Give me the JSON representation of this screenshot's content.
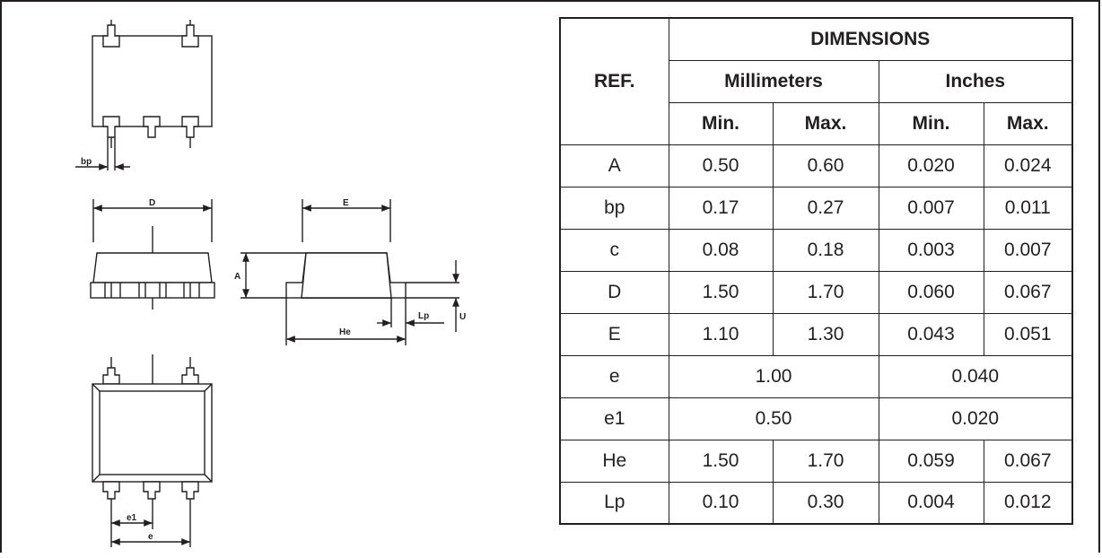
{
  "table": {
    "ref_header": "REF.",
    "dimensions_header": "DIMENSIONS",
    "mm_header": "Millimeters",
    "in_header": "Inches",
    "min_label": "Min.",
    "max_label": "Max.",
    "rows": [
      {
        "ref": "A",
        "mm_min": "0.50",
        "mm_max": "0.60",
        "in_min": "0.020",
        "in_max": "0.024"
      },
      {
        "ref": "bp",
        "mm_min": "0.17",
        "mm_max": "0.27",
        "in_min": "0.007",
        "in_max": "0.011"
      },
      {
        "ref": "c",
        "mm_min": "0.08",
        "mm_max": "0.18",
        "in_min": "0.003",
        "in_max": "0.007"
      },
      {
        "ref": "D",
        "mm_min": "1.50",
        "mm_max": "1.70",
        "in_min": "0.060",
        "in_max": "0.067"
      },
      {
        "ref": "E",
        "mm_min": "1.10",
        "mm_max": "1.30",
        "in_min": "0.043",
        "in_max": "0.051"
      },
      {
        "ref": "e",
        "mm_nom": "1.00",
        "in_nom": "0.040"
      },
      {
        "ref": "e1",
        "mm_nom": "0.50",
        "in_nom": "0.020"
      },
      {
        "ref": "He",
        "mm_min": "1.50",
        "mm_max": "1.70",
        "in_min": "0.059",
        "in_max": "0.067"
      },
      {
        "ref": "Lp",
        "mm_min": "0.10",
        "mm_max": "0.30",
        "in_min": "0.004",
        "in_max": "0.012"
      }
    ]
  },
  "drawing": {
    "label_bp": "bp",
    "label_D": "D",
    "label_E": "E",
    "label_A": "A",
    "label_He": "He",
    "label_Lp": "Lp",
    "label_U": "U",
    "label_e1": "e1",
    "label_e": "e"
  },
  "colors": {
    "ink": "#231f20",
    "background": "#ffffff"
  }
}
